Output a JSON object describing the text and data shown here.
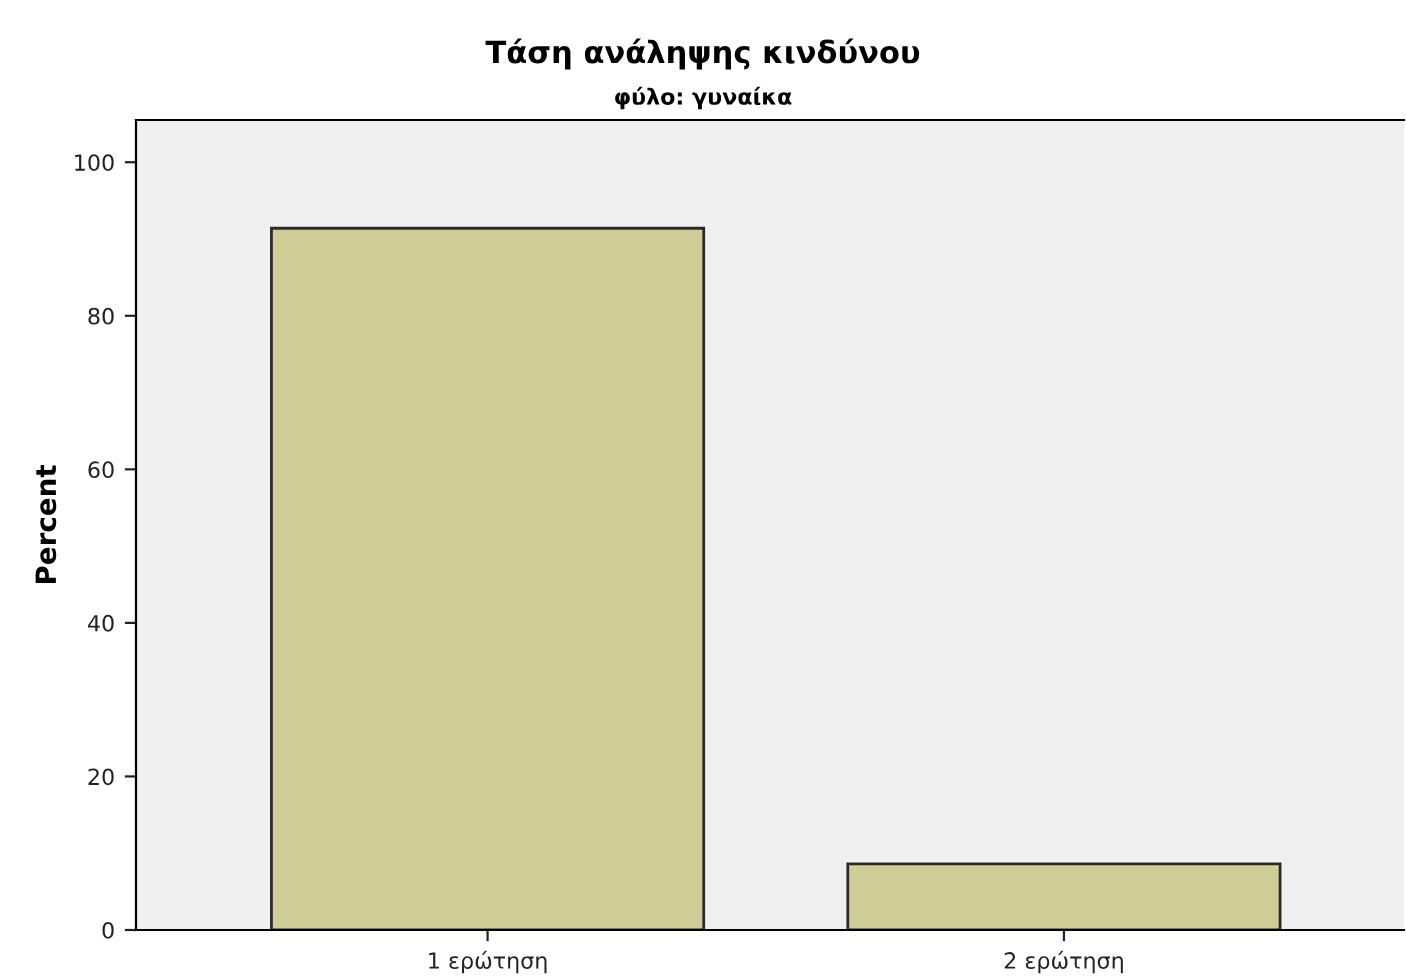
{
  "chart_data": {
    "type": "bar",
    "title": "Τάση ανάληψης κινδύνου",
    "subtitle": "φύλο: γυναίκα",
    "ylabel": "Percent",
    "categories": [
      "1 ερώτηση",
      "2 ερώτηση"
    ],
    "values": [
      91.4,
      8.6
    ],
    "color": "#d0cc95",
    "ylim": [
      0,
      105.5
    ],
    "yticks": [
      0,
      20,
      40,
      60,
      80,
      100
    ],
    "grid": false
  }
}
